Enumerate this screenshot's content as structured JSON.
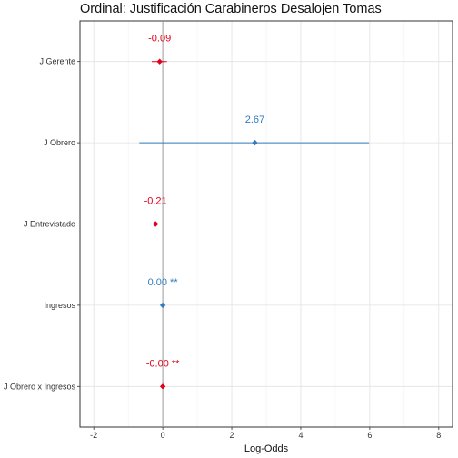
{
  "chart_data": {
    "type": "scatter",
    "title": "Ordinal: Justificación Carabineros Desalojen Tomas",
    "xlabel": "Log-Odds",
    "ylabel": "",
    "xlim": [
      -2.4,
      8.4
    ],
    "x_ticks": [
      -2,
      0,
      2,
      4,
      6,
      8
    ],
    "grid": true,
    "reference_line": 0,
    "colors": {
      "negative": "#e3001b",
      "positive": "#2f7bbd"
    },
    "points": [
      {
        "term": "J Gerente",
        "estimate": -0.09,
        "ci": [
          -0.32,
          0.12
        ],
        "label": "-0.09",
        "sign": "negative"
      },
      {
        "term": "J Obrero",
        "estimate": 2.67,
        "ci": [
          -0.68,
          5.98
        ],
        "label": "2.67",
        "sign": "positive"
      },
      {
        "term": "J Entrevistado",
        "estimate": -0.21,
        "ci": [
          -0.75,
          0.27
        ],
        "label": "-0.21",
        "sign": "negative"
      },
      {
        "term": "Ingresos",
        "estimate": 0.0,
        "ci": [
          -0.01,
          0.01
        ],
        "label": "0.00 **",
        "sign": "positive"
      },
      {
        "term": "J Obrero x Ingresos",
        "estimate": 0.0,
        "ci": [
          -0.01,
          0.01
        ],
        "label": "-0.00 **",
        "sign": "negative"
      }
    ]
  }
}
